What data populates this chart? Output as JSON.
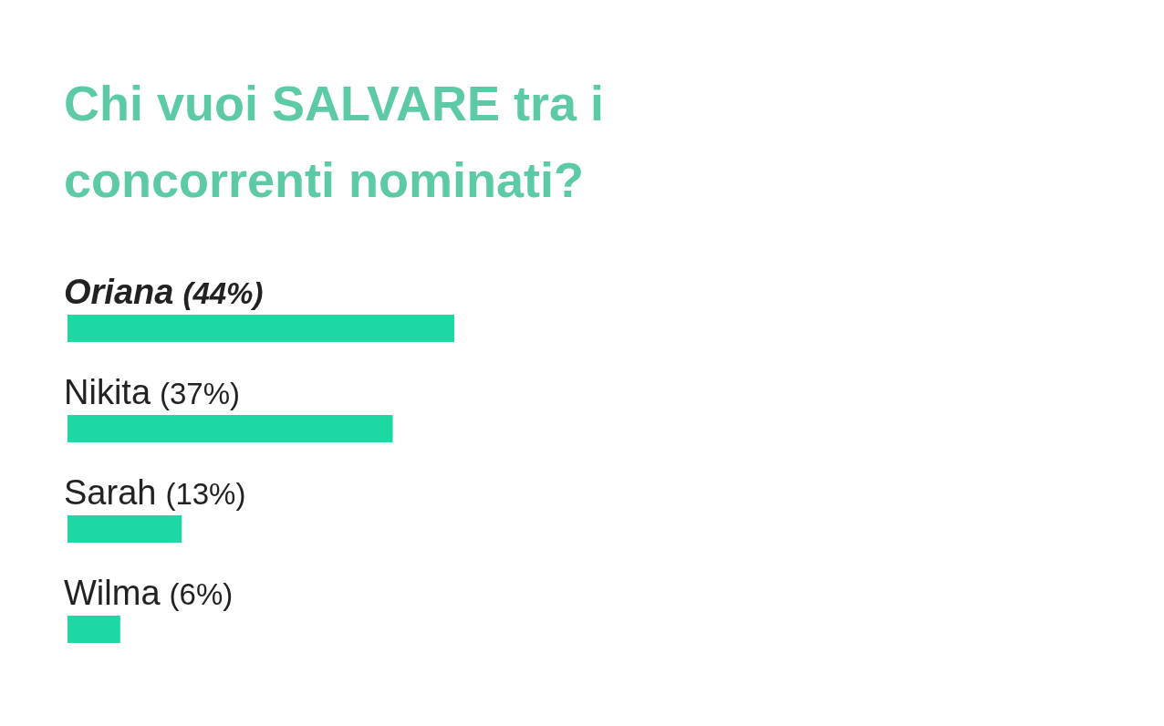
{
  "chart_data": {
    "type": "bar",
    "orientation": "horizontal",
    "title": "Chi vuoi SALVARE tra i concorrenti nominati?",
    "categories": [
      "Oriana",
      "Nikita",
      "Sarah",
      "Wilma"
    ],
    "values": [
      44,
      37,
      13,
      6
    ],
    "value_labels": [
      "(44%)",
      "(37%)",
      "(13%)",
      "(6%)"
    ],
    "color": "#1ed8a4"
  }
}
